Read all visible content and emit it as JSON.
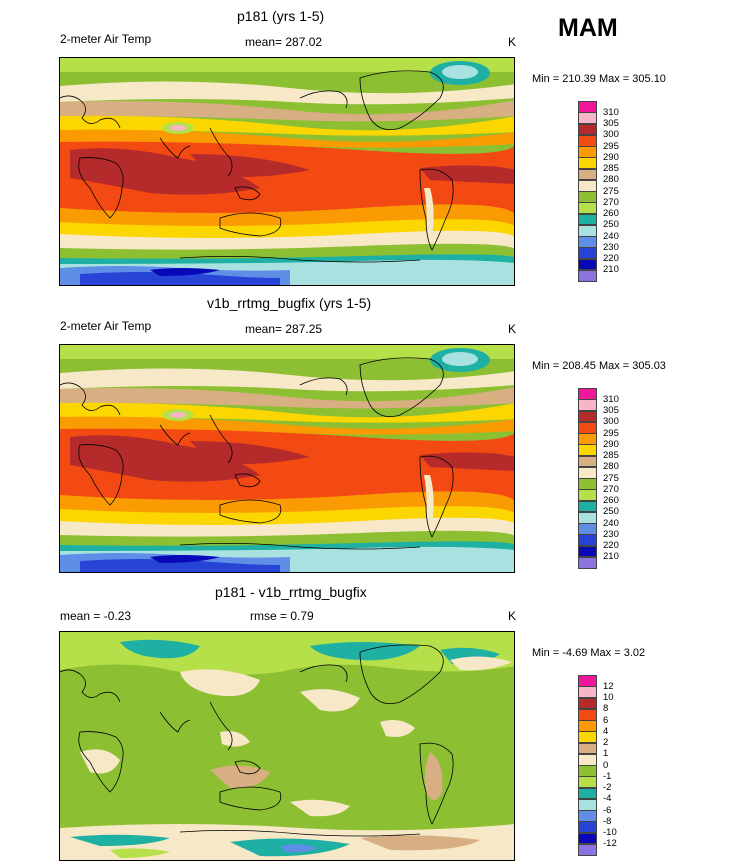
{
  "season_label": "MAM",
  "panels": [
    {
      "id": "p181",
      "title": "p181 (yrs 1-5)",
      "variable": "2-meter Air Temp",
      "mean_label": "mean= 287.02",
      "units": "K",
      "minmax": "Min = 210.39 Max = 305.10",
      "kind": "abs",
      "colorbar_levels": [
        "310",
        "305",
        "300",
        "295",
        "290",
        "285",
        "280",
        "275",
        "270",
        "260",
        "250",
        "240",
        "230",
        "220",
        "210"
      ]
    },
    {
      "id": "v1b",
      "title": "v1b_rrtmg_bugfix (yrs 1-5)",
      "variable": "2-meter Air Temp",
      "mean_label": "mean= 287.25",
      "units": "K",
      "minmax": "Min = 208.45 Max = 305.03",
      "kind": "abs",
      "colorbar_levels": [
        "310",
        "305",
        "300",
        "295",
        "290",
        "285",
        "280",
        "275",
        "270",
        "260",
        "250",
        "240",
        "230",
        "220",
        "210"
      ]
    },
    {
      "id": "diff",
      "title": "p181 - v1b_rrtmg_bugfix",
      "mean_label": "mean =  -0.23",
      "rmse_label": "rmse =   0.79",
      "units": "K",
      "minmax": "Min =  -4.69 Max =   3.02",
      "kind": "diff",
      "colorbar_levels": [
        "12",
        "10",
        "8",
        "6",
        "4",
        "2",
        "1",
        "0",
        "-1",
        "-2",
        "-4",
        "-6",
        "-8",
        "-10",
        "-12"
      ]
    }
  ],
  "colors": {
    "abs": [
      "#f0179a",
      "#f7b6c8",
      "#b52a2a",
      "#f24a12",
      "#fb9b04",
      "#fbd600",
      "#d8ae83",
      "#f7e8c7",
      "#8cbf31",
      "#b6e049",
      "#1fb0a4",
      "#a9e0e0",
      "#5f8ee6",
      "#2744d6",
      "#0808b8",
      "#8d73e0"
    ],
    "diff": [
      "#f0179a",
      "#f7b6c8",
      "#b52a2a",
      "#f24a12",
      "#fb9b04",
      "#fbd600",
      "#d8ae83",
      "#f7e8c7",
      "#8cbf31",
      "#b6e049",
      "#1fb0a4",
      "#a9e0e0",
      "#5f8ee6",
      "#2744d6",
      "#0808b8",
      "#8d73e0"
    ]
  }
}
